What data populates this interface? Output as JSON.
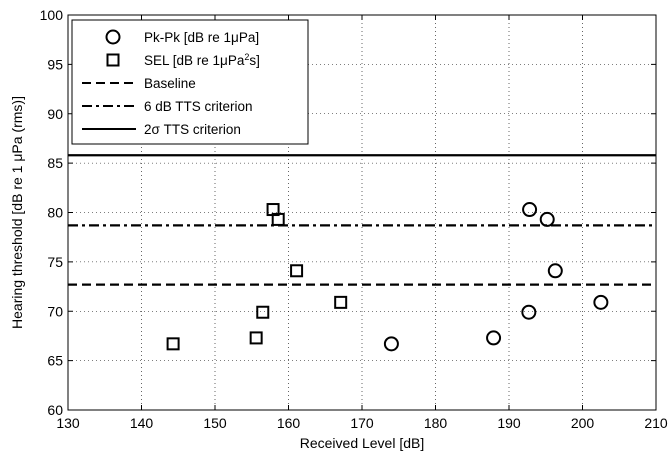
{
  "chart_data": {
    "type": "scatter",
    "title": "",
    "xlabel": "Received Level [dB]",
    "ylabel": "Hearing threshold [dB re 1 μPa (rms)]",
    "xlim": [
      130,
      210
    ],
    "ylim": [
      60,
      100
    ],
    "xticks": [
      130,
      140,
      150,
      160,
      170,
      180,
      190,
      200,
      210
    ],
    "yticks": [
      60,
      65,
      70,
      75,
      80,
      85,
      90,
      95,
      100
    ],
    "grid": "dotted",
    "legend_position": "top-left",
    "series": [
      {
        "name": "Pk-Pk [dB re 1μPa]",
        "marker": "circle",
        "points": [
          {
            "x": 174.0,
            "y": 66.7
          },
          {
            "x": 187.9,
            "y": 67.3
          },
          {
            "x": 192.7,
            "y": 69.9
          },
          {
            "x": 192.8,
            "y": 80.3
          },
          {
            "x": 195.2,
            "y": 79.3
          },
          {
            "x": 196.3,
            "y": 74.1
          },
          {
            "x": 202.5,
            "y": 70.9
          }
        ]
      },
      {
        "name": "SEL [dB re 1μPa²s]",
        "marker": "square",
        "points": [
          {
            "x": 144.3,
            "y": 66.7
          },
          {
            "x": 155.6,
            "y": 67.3
          },
          {
            "x": 156.5,
            "y": 69.9
          },
          {
            "x": 157.9,
            "y": 80.3
          },
          {
            "x": 158.6,
            "y": 79.3
          },
          {
            "x": 161.1,
            "y": 74.1
          },
          {
            "x": 167.1,
            "y": 70.9
          }
        ]
      }
    ],
    "reference_lines": [
      {
        "name": "Baseline",
        "y": 72.7,
        "style": "dashed"
      },
      {
        "name": "6 dB TTS criterion",
        "y": 78.7,
        "style": "dashdot"
      },
      {
        "name": "2σ TTS criterion",
        "y": 85.8,
        "style": "solid"
      }
    ],
    "legend": [
      {
        "marker": "circle",
        "label_main": "Pk-Pk [dB re 1",
        "label_mu": "μ",
        "label_rest": "Pa]"
      },
      {
        "marker": "square",
        "label_main": "SEL [dB re 1",
        "label_mu": "μ",
        "label_rest": "Pa",
        "label_sup": "2",
        "label_end": "s]"
      },
      {
        "marker": "dashed",
        "label_main": "Baseline"
      },
      {
        "marker": "dashdot",
        "label_main": "6 dB TTS criterion"
      },
      {
        "marker": "solid",
        "label_main": "2",
        "label_sigma": "σ",
        "label_rest": " TTS criterion"
      }
    ],
    "ylabel_parts": {
      "main": "Hearing threshold [dB re 1 ",
      "mu": "μ",
      "rest": "Pa (rms)]"
    }
  }
}
